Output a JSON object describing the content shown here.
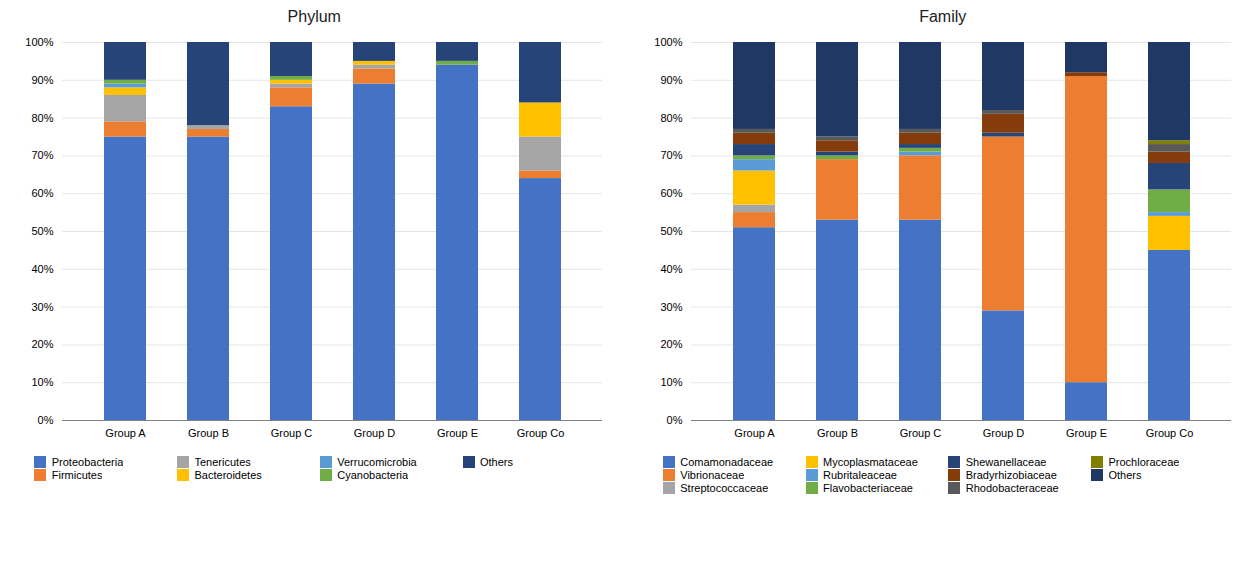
{
  "chart_data": [
    {
      "type": "bar",
      "title": "Phylum",
      "stacked": true,
      "grid": true,
      "legend": "bottom",
      "categories": [
        "Group A",
        "Group B",
        "Group C",
        "Group D",
        "Group E",
        "Group Co"
      ],
      "series": [
        {
          "name": "Proteobacteria",
          "color": "#4472C4",
          "values": [
            75,
            75,
            83,
            89,
            94,
            64
          ]
        },
        {
          "name": "Firmicutes",
          "color": "#ED7D31",
          "values": [
            4,
            2,
            5,
            4,
            0,
            2
          ]
        },
        {
          "name": "Tenericutes",
          "color": "#A5A5A5",
          "values": [
            7,
            1,
            1,
            1,
            0,
            9
          ]
        },
        {
          "name": "Bacteroidetes",
          "color": "#FFC000",
          "values": [
            2,
            0,
            1,
            1,
            0,
            9
          ]
        },
        {
          "name": "Verrucomicrobia",
          "color": "#5B9BD5",
          "values": [
            1,
            0,
            0,
            0,
            0,
            0
          ]
        },
        {
          "name": "Cyanobacteria",
          "color": "#70AD47",
          "values": [
            1,
            0,
            1,
            0,
            1,
            0
          ]
        },
        {
          "name": "Others",
          "color": "#264478",
          "values": [
            10,
            22,
            9,
            5,
            5,
            16
          ]
        }
      ],
      "ylim": [
        0,
        100
      ],
      "yticks": [
        {
          "value": 0,
          "label": "0%"
        },
        {
          "value": 10,
          "label": "10%"
        },
        {
          "value": 20,
          "label": "20%"
        },
        {
          "value": 30,
          "label": "30%"
        },
        {
          "value": 40,
          "label": "40%"
        },
        {
          "value": 50,
          "label": "50%"
        },
        {
          "value": 60,
          "label": "60%"
        },
        {
          "value": 70,
          "label": "70%"
        },
        {
          "value": 80,
          "label": "80%"
        },
        {
          "value": 90,
          "label": "90%"
        },
        {
          "value": 100,
          "label": "100%"
        }
      ]
    },
    {
      "type": "bar",
      "title": "Family",
      "stacked": true,
      "grid": true,
      "legend": "bottom",
      "categories": [
        "Group A",
        "Group B",
        "Group C",
        "Group D",
        "Group E",
        "Group Co"
      ],
      "series": [
        {
          "name": "Comamonadaceae",
          "color": "#4472C4",
          "values": [
            51,
            53,
            53,
            29,
            10,
            45
          ]
        },
        {
          "name": "Vibrionaceae",
          "color": "#ED7D31",
          "values": [
            4,
            16,
            17,
            46,
            81,
            0
          ]
        },
        {
          "name": "Streptococcaceae",
          "color": "#A5A5A5",
          "values": [
            2,
            0,
            0,
            0,
            0,
            0
          ]
        },
        {
          "name": "Mycoplasmataceae",
          "color": "#FFC000",
          "values": [
            9,
            0,
            0,
            0,
            0,
            9
          ]
        },
        {
          "name": "Rubritaleaceae",
          "color": "#5B9BD5",
          "values": [
            3,
            0,
            1,
            0,
            0,
            1
          ]
        },
        {
          "name": "Flavobacteriaceae",
          "color": "#70AD47",
          "values": [
            1,
            1,
            1,
            0,
            0,
            6
          ]
        },
        {
          "name": "Shewanellaceae",
          "color": "#264478",
          "values": [
            3,
            1,
            1,
            1,
            0,
            7
          ]
        },
        {
          "name": "Bradyrhizobiaceae",
          "color": "#843C0C",
          "values": [
            3,
            3,
            3,
            5,
            1,
            3
          ]
        },
        {
          "name": "Rhodobacteraceae",
          "color": "#595959",
          "values": [
            1,
            1,
            1,
            1,
            0,
            2
          ]
        },
        {
          "name": "Prochloraceae",
          "color": "#7F7F00",
          "values": [
            0,
            0,
            0,
            0,
            0,
            1
          ]
        },
        {
          "name": "Others",
          "color": "#1F3864",
          "values": [
            23,
            25,
            23,
            18,
            8,
            26
          ]
        }
      ],
      "ylim": [
        0,
        100
      ],
      "yticks": [
        {
          "value": 0,
          "label": "0%"
        },
        {
          "value": 10,
          "label": "10%"
        },
        {
          "value": 20,
          "label": "20%"
        },
        {
          "value": 30,
          "label": "30%"
        },
        {
          "value": 40,
          "label": "40%"
        },
        {
          "value": 50,
          "label": "50%"
        },
        {
          "value": 60,
          "label": "60%"
        },
        {
          "value": 70,
          "label": "70%"
        },
        {
          "value": 80,
          "label": "80%"
        },
        {
          "value": 90,
          "label": "90%"
        },
        {
          "value": 100,
          "label": "100%"
        }
      ]
    }
  ]
}
